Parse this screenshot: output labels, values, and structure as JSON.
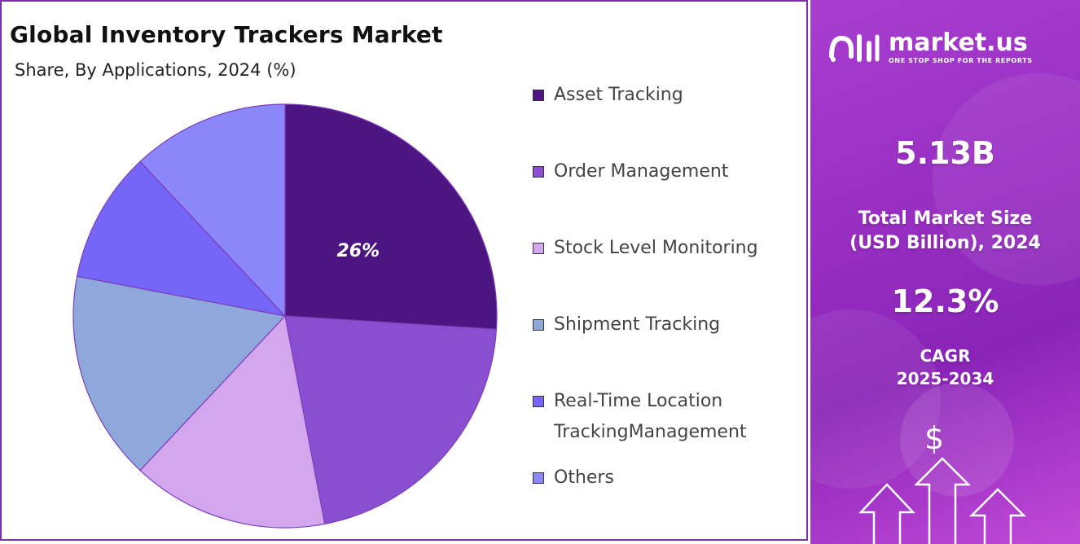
{
  "chart_data": {
    "type": "pie",
    "title": "Global Inventory Trackers Market",
    "subtitle": "Share, By Applications, 2024 (%)",
    "slices": [
      {
        "label": "Asset Tracking",
        "value": 26,
        "color": "#4c1582",
        "data_label": "26%"
      },
      {
        "label": "Order Management",
        "value": 21,
        "color": "#8a4fd1",
        "data_label": ""
      },
      {
        "label": "Stock Level Monitoring",
        "value": 15,
        "color": "#d3a6ee",
        "data_label": ""
      },
      {
        "label": "Shipment Tracking",
        "value": 16,
        "color": "#8fa8dc",
        "data_label": ""
      },
      {
        "label": "Real-Time Location\nTrackingManagement",
        "value": 10,
        "color": "#7566f8",
        "data_label": ""
      },
      {
        "label": "Others",
        "value": 12,
        "color": "#8c86fb",
        "data_label": ""
      }
    ],
    "legend_position": "right"
  },
  "sidebar": {
    "brand_name": "market.us",
    "brand_tagline": "ONE STOP SHOP FOR THE REPORTS",
    "market_size_value": "5.13B",
    "market_size_label_line1": "Total Market Size",
    "market_size_label_line2": "(USD Billion), 2024",
    "cagr_value": "12.3%",
    "cagr_label_line1": "CAGR",
    "cagr_label_line2": "2025-2034",
    "icon": "dollar-growth-icon",
    "dollar_symbol": "$"
  }
}
